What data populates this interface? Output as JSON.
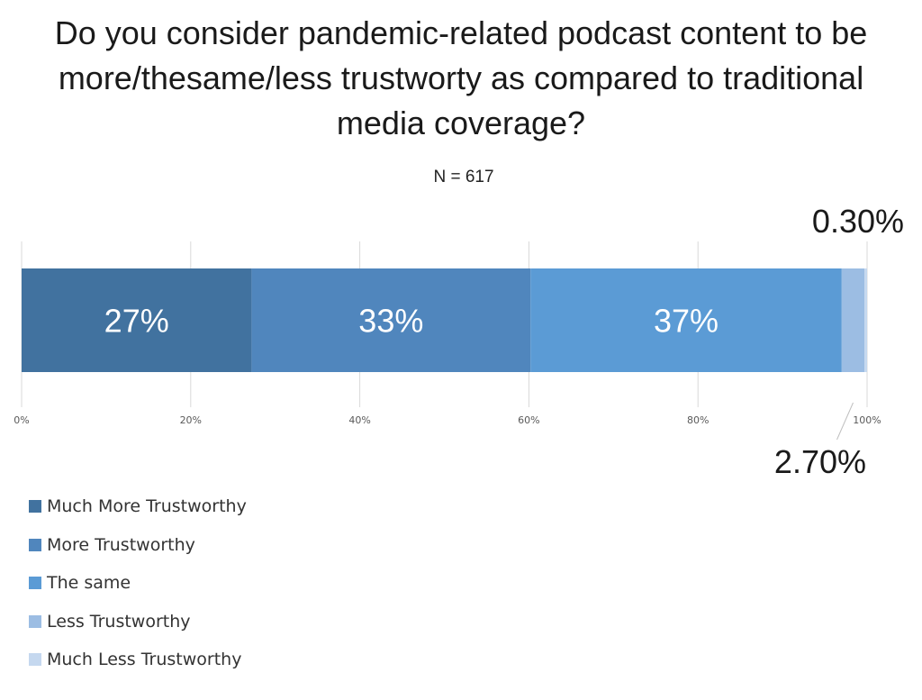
{
  "chart_data": {
    "type": "bar",
    "orientation": "horizontal",
    "stacked": true,
    "title": "Do you consider pandemic-related podcast content to be more/thesame/less trustworty as compared to traditional media coverage?",
    "title_lines": [
      "Do you consider pandemic-related podcast content to be",
      "more/thesame/less trustworty as compared to traditional",
      "media coverage?"
    ],
    "subtitle": "N = 617",
    "xlim": [
      0,
      100
    ],
    "x_ticks": [
      0,
      20,
      40,
      60,
      80,
      100
    ],
    "x_tick_labels": [
      "0%",
      "20%",
      "40%",
      "60%",
      "80%",
      "100%"
    ],
    "grid": true,
    "legend_position": "bottom-left",
    "series": [
      {
        "name": "Much More Trustworthy",
        "value": 27.2,
        "label": "27%",
        "color": "#41729f"
      },
      {
        "name": "More Trustworthy",
        "value": 33,
        "label": "33%",
        "color": "#5086bd"
      },
      {
        "name": "The same",
        "value": 36.8,
        "label": "37%",
        "color": "#5b9bd5"
      },
      {
        "name": "Less Trustworthy",
        "value": 2.7,
        "label": "2.70%",
        "color": "#9cbde3"
      },
      {
        "name": "Much Less Trustworthy",
        "value": 0.3,
        "label": "0.30%",
        "color": "#c5d8ef"
      }
    ]
  }
}
